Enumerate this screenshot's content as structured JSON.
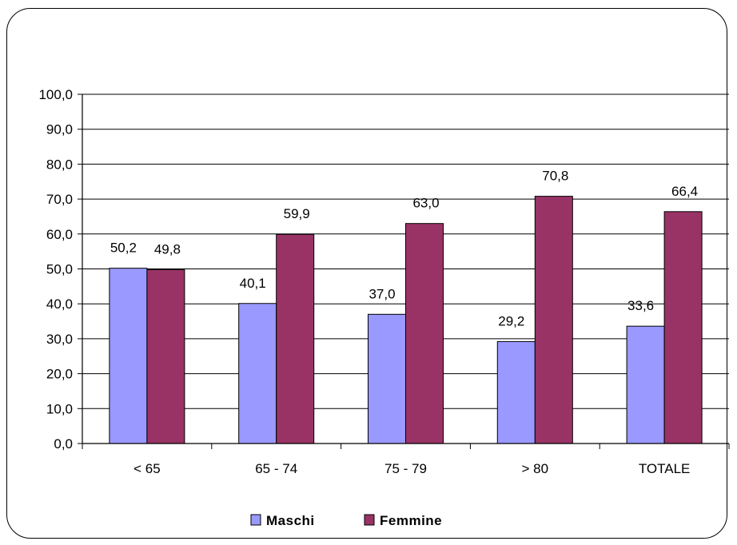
{
  "chart_data": {
    "type": "bar",
    "categories": [
      "< 65",
      "65 - 74",
      "75 - 79",
      "> 80",
      "TOTALE"
    ],
    "series": [
      {
        "name": "Maschi",
        "values": [
          50.2,
          40.1,
          37.0,
          29.2,
          33.6
        ],
        "labels": [
          "50,2",
          "40,1",
          "37,0",
          "29,2",
          "33,6"
        ],
        "color": "#9999ff"
      },
      {
        "name": "Femmine",
        "values": [
          49.8,
          59.9,
          63.0,
          70.8,
          66.4
        ],
        "labels": [
          "49,8",
          "59,9",
          "63,0",
          "70,8",
          "66,4"
        ],
        "color": "#993366"
      }
    ],
    "ylim": [
      0,
      100
    ],
    "yticks": [
      "0,0",
      "10,0",
      "20,0",
      "30,0",
      "40,0",
      "50,0",
      "60,0",
      "70,0",
      "80,0",
      "90,0",
      "100,0"
    ],
    "grid": true,
    "legend_position": "bottom",
    "title": "",
    "xlabel": "",
    "ylabel": ""
  }
}
